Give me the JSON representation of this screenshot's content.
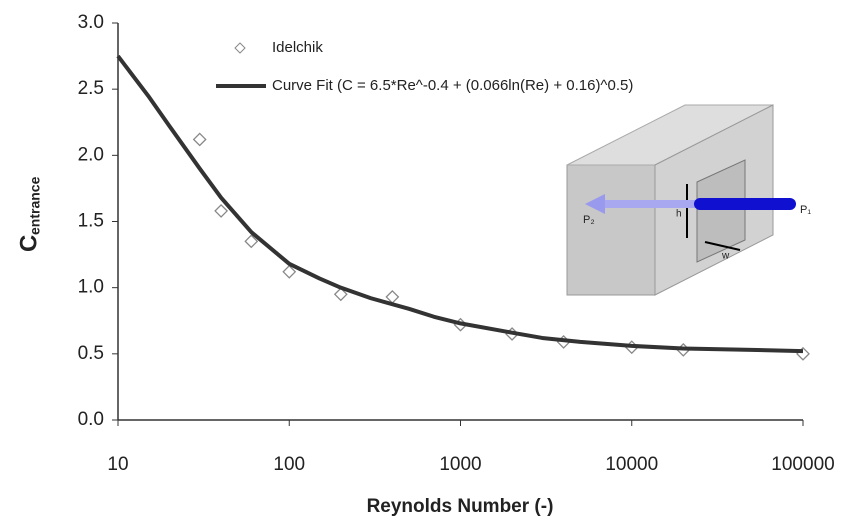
{
  "chart_data": {
    "type": "line",
    "xlabel": "Reynolds Number (-)",
    "ylabel": "C",
    "ylabel_subscript": "entrance",
    "xscale": "log",
    "xlim": [
      10,
      100000
    ],
    "xticks": [
      10,
      100,
      1000,
      10000,
      100000
    ],
    "ylim": [
      0,
      3
    ],
    "yticks": [
      {
        "value": 0,
        "label": "0.0"
      },
      0.5,
      {
        "value": 1,
        "label": "1.0"
      },
      1.5,
      {
        "value": 2,
        "label": "2.0"
      },
      2.5,
      {
        "value": 3,
        "label": "3.0"
      }
    ],
    "grid": false,
    "legend": "top",
    "series": [
      {
        "name": "Idelchik",
        "type": "scatter",
        "color": "#888888",
        "x": [
          30,
          40,
          60,
          100,
          200,
          400,
          1000,
          2000,
          4000,
          10000,
          20000,
          100000
        ],
        "values": [
          2.12,
          1.58,
          1.35,
          1.12,
          0.95,
          0.93,
          0.72,
          0.65,
          0.59,
          0.55,
          0.53,
          0.5
        ]
      },
      {
        "name": "Curve Fit (C = 6.5*Re^-0.4 +  (0.066ln(Re) + 0.16)^0.5)",
        "type": "line",
        "color": "#333333",
        "x": [
          10,
          15,
          20,
          30,
          40,
          60,
          100,
          150,
          200,
          300,
          500,
          700,
          1000,
          2000,
          3000,
          5000,
          10000,
          20000,
          50000,
          100000
        ],
        "values": [
          2.75,
          2.45,
          2.22,
          1.9,
          1.68,
          1.42,
          1.18,
          1.07,
          1.0,
          0.92,
          0.84,
          0.78,
          0.73,
          0.66,
          0.62,
          0.59,
          0.56,
          0.54,
          0.53,
          0.52
        ]
      }
    ],
    "inset_labels": [
      "P₁",
      "P₂",
      "h",
      "w"
    ]
  }
}
